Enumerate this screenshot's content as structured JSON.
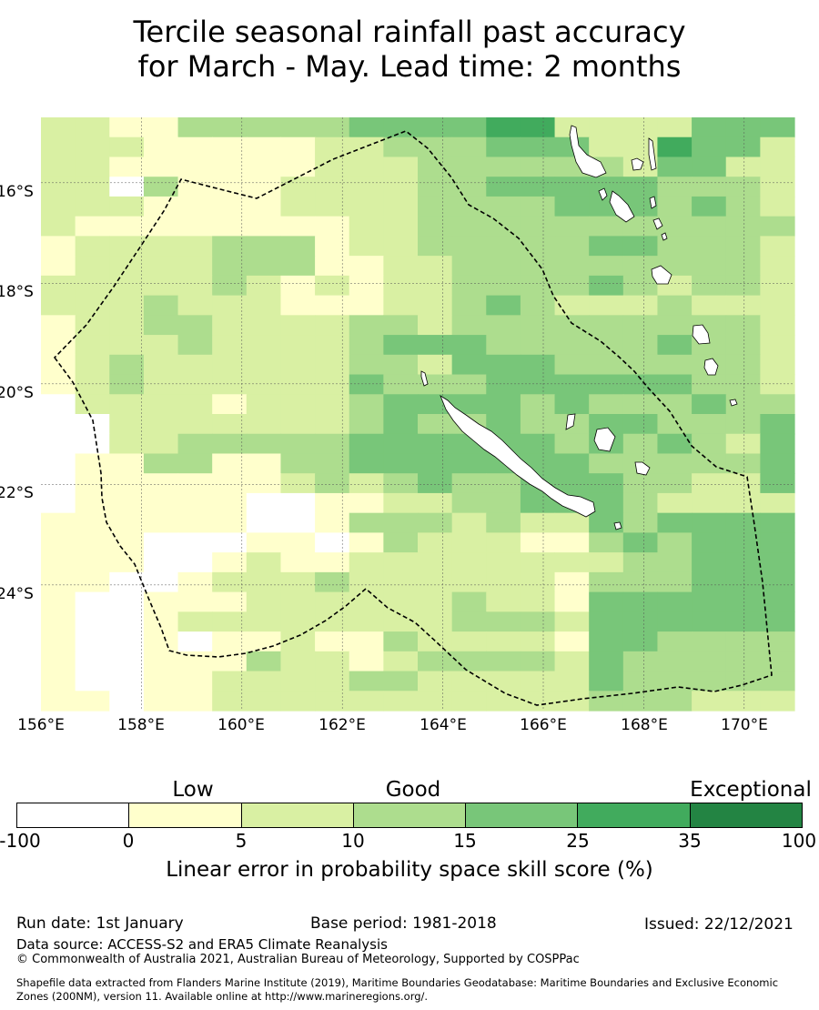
{
  "title": {
    "line1": "Tercile seasonal rainfall past accuracy",
    "line2": "for March - May. Lead time: 2 months"
  },
  "axes": {
    "lon_labels": [
      "156°E",
      "158°E",
      "160°E",
      "162°E",
      "164°E",
      "166°E",
      "168°E",
      "170°E"
    ],
    "lat_labels": [
      "16°S",
      "18°S",
      "20°S",
      "22°S",
      "24°S"
    ],
    "lon_range": [
      156,
      171
    ],
    "lat_range": [
      -26.5,
      -14.7
    ]
  },
  "legend": {
    "bands": [
      "Low",
      "Good",
      "Exceptional"
    ],
    "ticks": [
      "-100",
      "0",
      "5",
      "10",
      "15",
      "25",
      "35",
      "100"
    ],
    "colors": [
      "#ffffff",
      "#ffffcc",
      "#d9f0a3",
      "#addd8e",
      "#78c679",
      "#41ab5d",
      "#238443"
    ],
    "label": "Linear error in probability space skill score (%)"
  },
  "footer": {
    "run_date": "Run date: 1st January",
    "base_period": "Base period: 1981-2018",
    "issued": "Issued: 22/12/2021",
    "data_source": "Data source: ACCESS-S2 and ERA5 Climate Reanalysis",
    "copyright": "© Commonwealth of Australia 2021, Australian Bureau of Meteorology, Supported by COSPPac",
    "shapefile1": "Shapefile data extracted from Flanders Marine Institute (2019), Maritime Boundaries Geodatabase: Maritime Boundaries and Exclusive Economic",
    "shapefile2": "Zones (200NM), version 11. Available online at http://www.marineregions.org/."
  },
  "map_data": {
    "type": "heatmap",
    "levels": [
      "2211333334444552222444",
      "2221111122333444225442",
      "2211111122233333324422",
      "2203111222233444443332",
      "2221111222233334443432",
      "2111111112233333333333",
      "1222233312233333443332",
      "1222233311223333333332",
      "2222232121223333432332",
      "2223222111223432223222",
      "1223322223323333333332",
      "1222322223444333334332",
      "1232222223324443333332",
      "1232222224333444444332",
      "0222212223444434333433",
      "0022222223433433443334",
      "0022333334444443434324",
      "0113311334444444333334",
      "0111111232343344433224",
      "0111110011223344432222",
      "1111110013332322434444",
      "1110001101322211343444",
      "1110012112222222233444",
      "1100122232222221333444",
      "1001112222223221444444",
      "1001222222223332444444",
      "1001011211322221443333",
      "1001113221233332433333",
      "1001122223322222433333",
      "1101122222222222333222"
    ]
  }
}
